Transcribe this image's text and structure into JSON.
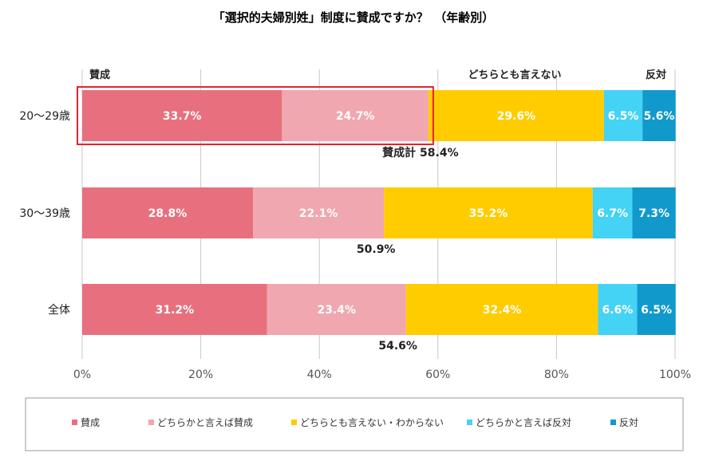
{
  "chart_data": {
    "type": "bar",
    "orientation": "horizontal-stacked",
    "title": "「選択的夫婦別姓」制度に賛成ですか？　（年齢別）",
    "categories": [
      "20～29歳",
      "30～39歳",
      "全体"
    ],
    "series": [
      {
        "name": "賛成",
        "values": [
          33.7,
          28.8,
          31.2
        ],
        "color": "#e8707e"
      },
      {
        "name": "どちらかと言えば賛成",
        "values": [
          24.7,
          22.1,
          23.4
        ],
        "color": "#f0a7b0"
      },
      {
        "name": "どちらとも言えない・わからない",
        "values": [
          29.6,
          35.2,
          32.4
        ],
        "color": "#ffcc00"
      },
      {
        "name": "どちらかと言えば反対",
        "values": [
          6.5,
          6.7,
          6.6
        ],
        "color": "#44d2f5"
      },
      {
        "name": "反対",
        "values": [
          5.6,
          7.3,
          6.5
        ],
        "color": "#1199cc"
      }
    ],
    "value_labels": [
      [
        "33.7%",
        "24.7%",
        "29.6%",
        "6.5%",
        "5.6%"
      ],
      [
        "28.8%",
        "22.1%",
        "35.2%",
        "6.7%",
        "7.3%"
      ],
      [
        "31.2%",
        "23.4%",
        "32.4%",
        "6.6%",
        "6.5%"
      ]
    ],
    "approve_totals": [
      "58.4%",
      "50.9%",
      "54.6%"
    ],
    "approve_total_prefix": "賛成計",
    "top_labels": {
      "left": "賛成",
      "middle": "どちらとも言えない",
      "right": "反対"
    },
    "xlim": [
      0,
      100
    ],
    "x_ticks": [
      "0%",
      "20%",
      "40%",
      "60%",
      "80%",
      "100%"
    ],
    "grid": true,
    "legend_position": "bottom",
    "highlight_color": "#e8212e"
  }
}
